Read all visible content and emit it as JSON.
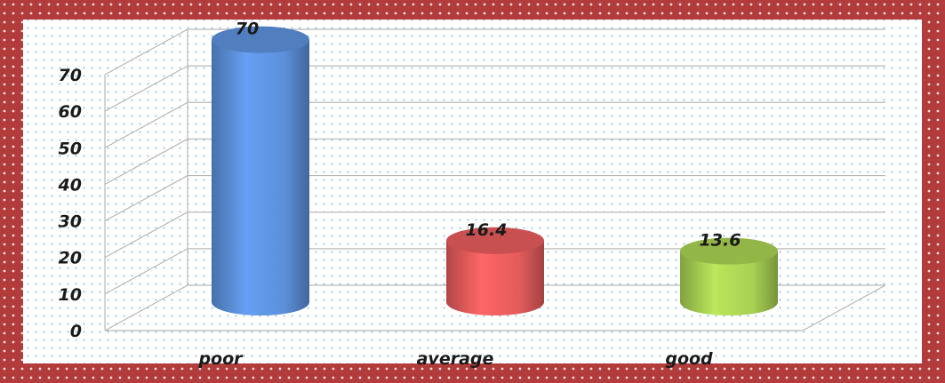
{
  "chart_data": {
    "type": "bar",
    "style": "3d-cylinder",
    "categories": [
      "poor",
      "average",
      "good"
    ],
    "series": [
      {
        "values": [
          70,
          16.4,
          13.6
        ]
      }
    ],
    "data_labels": [
      "70",
      "16.4",
      "13.6"
    ],
    "y_ticks": [
      "0",
      "10",
      "20",
      "30",
      "40",
      "50",
      "60",
      "70"
    ],
    "ylim": [
      0,
      70
    ],
    "grid": true,
    "legend": false,
    "colors": {
      "bars": [
        "#5b8fd9",
        "#e35b5b",
        "#a7cf52"
      ],
      "border": "#b03a3a",
      "gridline": "#b8b8b8",
      "dots": "#7fb6d6"
    }
  }
}
